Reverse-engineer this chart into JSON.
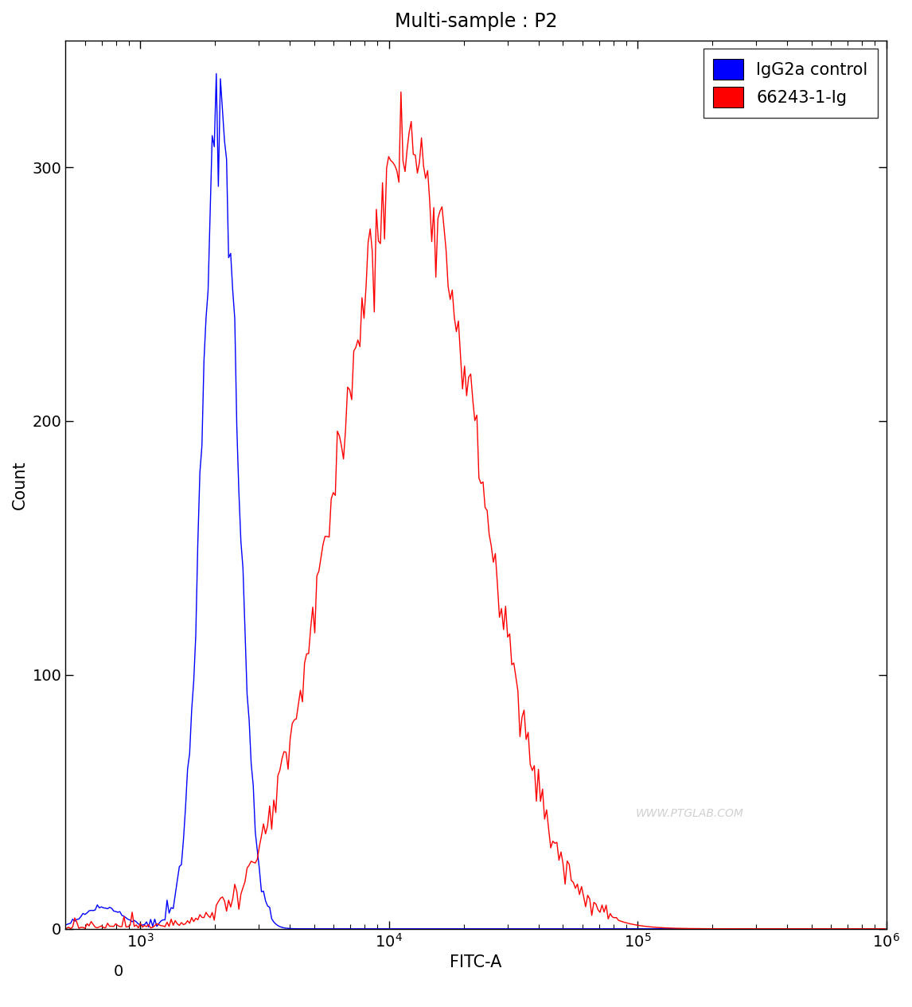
{
  "title": "Multi-sample : P2",
  "xlabel": "FITC-A",
  "ylabel": "Count",
  "ylim": [
    0,
    350
  ],
  "blue_label": "IgG2a control",
  "red_label": "66243-1-Ig",
  "blue_color": "#0000FF",
  "red_color": "#FF0000",
  "background_color": "#FFFFFF",
  "watermark": "WWW.PTGLAB.COM",
  "title_fontsize": 17,
  "label_fontsize": 15,
  "tick_fontsize": 14,
  "legend_fontsize": 15,
  "blue_peak_log": 3.32,
  "blue_sigma": 0.07,
  "blue_peak_height": 325,
  "red_peak_log": 4.08,
  "red_sigma": 0.28,
  "red_peak_height": 308,
  "n_points": 500,
  "xlog_min": 2.699,
  "xlog_max": 6.0
}
